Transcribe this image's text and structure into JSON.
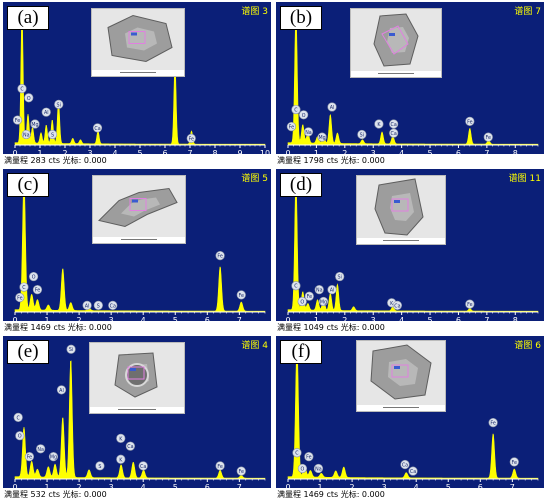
{
  "colors": {
    "bg": "#0b1f78",
    "spectrum": "#ffff00",
    "axis": "#ffffff",
    "label_circle": "#dde3ee"
  },
  "panels": [
    {
      "label": "(a)",
      "map": "谱图 3",
      "status": "满量程 283 cts 光标: 0.000",
      "unit": "keV",
      "xticks": [
        "0",
        "1",
        "2",
        "3",
        "4",
        "5",
        "6",
        "7",
        "8",
        "9",
        "10"
      ],
      "chart_data": {
        "type": "line",
        "xlim": [
          0,
          10
        ],
        "ylim": [
          0,
          100
        ],
        "peaks": [
          {
            "x": 0.28,
            "h": 100
          },
          {
            "x": 0.52,
            "h": 22
          },
          {
            "x": 0.7,
            "h": 12
          },
          {
            "x": 1.04,
            "h": 8
          },
          {
            "x": 1.25,
            "h": 14
          },
          {
            "x": 1.49,
            "h": 18
          },
          {
            "x": 1.74,
            "h": 33
          },
          {
            "x": 2.31,
            "h": 4
          },
          {
            "x": 2.62,
            "h": 3
          },
          {
            "x": 3.32,
            "h": 10
          },
          {
            "x": 6.4,
            "h": 62
          },
          {
            "x": 7.06,
            "h": 10
          }
        ],
        "labels": [
          {
            "x": 0.28,
            "y": 40,
            "t": "C"
          },
          {
            "x": 0.55,
            "y": 33,
            "t": "O"
          },
          {
            "x": 0.1,
            "y": 16,
            "t": "Fe"
          },
          {
            "x": 0.45,
            "y": 5,
            "t": "Na"
          },
          {
            "x": 0.8,
            "y": 13,
            "t": "Mg"
          },
          {
            "x": 1.25,
            "y": 22,
            "t": "Al"
          },
          {
            "x": 1.75,
            "y": 28,
            "t": "Si"
          },
          {
            "x": 1.5,
            "y": 5,
            "t": "S"
          },
          {
            "x": 3.3,
            "y": 10,
            "t": "Ca"
          },
          {
            "x": 7.05,
            "y": 2,
            "t": "Fe"
          }
        ]
      }
    },
    {
      "label": "(b)",
      "map": "谱图 7",
      "status": "满量程 1798 cts 光标: 0.000",
      "unit": "keV",
      "xticks": [
        "0",
        "1",
        "2",
        "3",
        "4",
        "5",
        "6",
        "7",
        "8"
      ],
      "chart_data": {
        "type": "line",
        "xlim": [
          0,
          8.8
        ],
        "ylim": [
          0,
          100
        ],
        "peaks": [
          {
            "x": 0.28,
            "h": 100
          },
          {
            "x": 0.52,
            "h": 14
          },
          {
            "x": 0.7,
            "h": 8
          },
          {
            "x": 1.04,
            "h": 5
          },
          {
            "x": 1.25,
            "h": 6
          },
          {
            "x": 1.49,
            "h": 22
          },
          {
            "x": 1.74,
            "h": 8
          },
          {
            "x": 2.62,
            "h": 3
          },
          {
            "x": 3.31,
            "h": 9
          },
          {
            "x": 3.69,
            "h": 6
          },
          {
            "x": 6.4,
            "h": 12
          },
          {
            "x": 7.06,
            "h": 3
          }
        ],
        "labels": [
          {
            "x": 0.28,
            "y": 24,
            "t": "C"
          },
          {
            "x": 0.55,
            "y": 20,
            "t": "O"
          },
          {
            "x": 0.12,
            "y": 11,
            "t": "Fe"
          },
          {
            "x": 0.72,
            "y": 7,
            "t": "Na"
          },
          {
            "x": 1.2,
            "y": 3,
            "t": "Mg"
          },
          {
            "x": 1.55,
            "y": 26,
            "t": "Al"
          },
          {
            "x": 2.6,
            "y": 5,
            "t": "Si"
          },
          {
            "x": 3.2,
            "y": 13,
            "t": "K"
          },
          {
            "x": 3.72,
            "y": 13,
            "t": "Ca"
          },
          {
            "x": 3.72,
            "y": 6,
            "t": "Ca"
          },
          {
            "x": 6.4,
            "y": 15,
            "t": "Fe"
          },
          {
            "x": 7.05,
            "y": 3,
            "t": "Fe"
          }
        ]
      }
    },
    {
      "label": "(c)",
      "map": "谱图 5",
      "status": "满量程 1469 cts 光标: 0.000",
      "unit": "keV",
      "xticks": [
        "0",
        "1",
        "2",
        "3",
        "4",
        "5",
        "6",
        "7"
      ],
      "chart_data": {
        "type": "line",
        "xlim": [
          0,
          7.8
        ],
        "ylim": [
          0,
          100
        ],
        "peaks": [
          {
            "x": 0.28,
            "h": 100
          },
          {
            "x": 0.52,
            "h": 12
          },
          {
            "x": 0.7,
            "h": 8
          },
          {
            "x": 1.04,
            "h": 4
          },
          {
            "x": 1.49,
            "h": 32
          },
          {
            "x": 1.74,
            "h": 6
          },
          {
            "x": 2.31,
            "h": 2
          },
          {
            "x": 6.4,
            "h": 34
          },
          {
            "x": 7.06,
            "h": 7
          }
        ],
        "labels": [
          {
            "x": 0.28,
            "y": 16,
            "t": "C"
          },
          {
            "x": 0.58,
            "y": 24,
            "t": "O"
          },
          {
            "x": 0.15,
            "y": 8,
            "t": "Fe"
          },
          {
            "x": 0.7,
            "y": 14,
            "t": "Fe"
          },
          {
            "x": 2.25,
            "y": 2,
            "t": "Al"
          },
          {
            "x": 2.6,
            "y": 2,
            "t": "S"
          },
          {
            "x": 3.05,
            "y": 2,
            "t": "Ca"
          },
          {
            "x": 6.4,
            "y": 40,
            "t": "Fe"
          },
          {
            "x": 7.06,
            "y": 10,
            "t": "Fe"
          }
        ]
      }
    },
    {
      "label": "(d)",
      "map": "谱图 11",
      "status": "满量程 1049 cts 光标: 0.000",
      "unit": "keV",
      "xticks": [
        "0",
        "1",
        "2",
        "3",
        "4",
        "5",
        "6",
        "7",
        "8"
      ],
      "chart_data": {
        "type": "line",
        "xlim": [
          0,
          8.8
        ],
        "ylim": [
          0,
          100
        ],
        "peaks": [
          {
            "x": 0.28,
            "h": 100
          },
          {
            "x": 0.52,
            "h": 14
          },
          {
            "x": 0.7,
            "h": 5
          },
          {
            "x": 1.04,
            "h": 8
          },
          {
            "x": 1.25,
            "h": 9
          },
          {
            "x": 1.49,
            "h": 13
          },
          {
            "x": 1.74,
            "h": 20
          },
          {
            "x": 2.31,
            "h": 3
          },
          {
            "x": 3.69,
            "h": 3
          },
          {
            "x": 6.4,
            "h": 2
          }
        ],
        "labels": [
          {
            "x": 0.28,
            "y": 17,
            "t": "C"
          },
          {
            "x": 0.5,
            "y": 5,
            "t": "O"
          },
          {
            "x": 0.75,
            "y": 9,
            "t": "Fe"
          },
          {
            "x": 1.1,
            "y": 14,
            "t": "Na"
          },
          {
            "x": 1.25,
            "y": 5,
            "t": "Mg"
          },
          {
            "x": 1.55,
            "y": 14,
            "t": "Al"
          },
          {
            "x": 1.82,
            "y": 24,
            "t": "Si"
          },
          {
            "x": 3.65,
            "y": 4,
            "t": "K"
          },
          {
            "x": 3.85,
            "y": 2,
            "t": "Ca"
          },
          {
            "x": 6.4,
            "y": 3,
            "t": "Fe"
          }
        ]
      }
    },
    {
      "label": "(e)",
      "map": "谱图 4",
      "status": "满量程 532 cts 光标: 0.000",
      "unit": "keV",
      "xticks": [
        "0",
        "1",
        "2",
        "3",
        "4",
        "5",
        "6",
        "7"
      ],
      "chart_data": {
        "type": "line",
        "xlim": [
          0,
          7.8
        ],
        "ylim": [
          0,
          100
        ],
        "peaks": [
          {
            "x": 0.28,
            "h": 38
          },
          {
            "x": 0.52,
            "h": 12
          },
          {
            "x": 0.7,
            "h": 6
          },
          {
            "x": 1.04,
            "h": 8
          },
          {
            "x": 1.25,
            "h": 10
          },
          {
            "x": 1.49,
            "h": 46
          },
          {
            "x": 1.74,
            "h": 90
          },
          {
            "x": 2.31,
            "h": 6
          },
          {
            "x": 3.31,
            "h": 10
          },
          {
            "x": 3.69,
            "h": 12
          },
          {
            "x": 4.01,
            "h": 6
          },
          {
            "x": 6.4,
            "h": 6
          },
          {
            "x": 7.06,
            "h": 2
          }
        ],
        "labels": [
          {
            "x": 0.1,
            "y": 44,
            "t": "C"
          },
          {
            "x": 0.15,
            "y": 30,
            "t": "O"
          },
          {
            "x": 0.45,
            "y": 14,
            "t": "Fe"
          },
          {
            "x": 0.8,
            "y": 20,
            "t": "Na"
          },
          {
            "x": 1.2,
            "y": 14,
            "t": "Mg"
          },
          {
            "x": 1.45,
            "y": 65,
            "t": "Al"
          },
          {
            "x": 1.75,
            "y": 96,
            "t": "Si"
          },
          {
            "x": 2.65,
            "y": 7,
            "t": "S"
          },
          {
            "x": 3.3,
            "y": 28,
            "t": "K"
          },
          {
            "x": 3.6,
            "y": 22,
            "t": "Ca"
          },
          {
            "x": 3.3,
            "y": 12,
            "t": "K"
          },
          {
            "x": 4.0,
            "y": 7,
            "t": "Ca"
          },
          {
            "x": 6.4,
            "y": 7,
            "t": "Fe"
          },
          {
            "x": 7.06,
            "y": 3,
            "t": "Fe"
          }
        ]
      }
    },
    {
      "label": "(f)",
      "map": "谱图 6",
      "status": "满量程 1469 cts 光标: 0.000",
      "unit": "keV",
      "xticks": [
        "0",
        "1",
        "2",
        "3",
        "4",
        "5",
        "6",
        "7"
      ],
      "chart_data": {
        "type": "line",
        "xlim": [
          0,
          7.8
        ],
        "ylim": [
          0,
          100
        ],
        "peaks": [
          {
            "x": 0.28,
            "h": 100
          },
          {
            "x": 0.52,
            "h": 9
          },
          {
            "x": 0.7,
            "h": 5
          },
          {
            "x": 1.04,
            "h": 3
          },
          {
            "x": 1.49,
            "h": 5
          },
          {
            "x": 1.74,
            "h": 8
          },
          {
            "x": 3.69,
            "h": 4
          },
          {
            "x": 6.4,
            "h": 34
          },
          {
            "x": 7.06,
            "h": 7
          }
        ],
        "labels": [
          {
            "x": 0.28,
            "y": 17,
            "t": "C"
          },
          {
            "x": 0.45,
            "y": 5,
            "t": "O"
          },
          {
            "x": 0.65,
            "y": 14,
            "t": "Fe"
          },
          {
            "x": 0.95,
            "y": 5,
            "t": "Na"
          },
          {
            "x": 3.65,
            "y": 8,
            "t": "Ca"
          },
          {
            "x": 3.9,
            "y": 3,
            "t": "Ca"
          },
          {
            "x": 6.4,
            "y": 40,
            "t": "Fe"
          },
          {
            "x": 7.06,
            "y": 10,
            "t": "Fe"
          }
        ]
      }
    }
  ]
}
